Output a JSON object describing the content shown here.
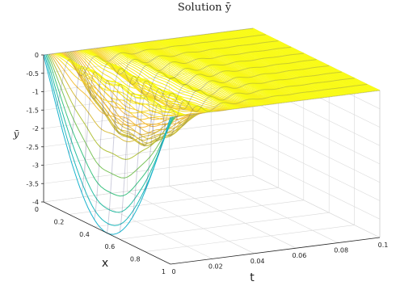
{
  "chart_data": {
    "type": "surface",
    "title": "Solution ȳ",
    "xlabel": "x",
    "tlabel": "t",
    "zlabel": "ȳ",
    "x_range": [
      0,
      1
    ],
    "t_range": [
      0,
      0.1
    ],
    "z_range": [
      -4,
      0
    ],
    "x_ticks": [
      "0",
      "0.2",
      "0.4",
      "0.6",
      "0.8",
      "1"
    ],
    "t_ticks": [
      "0",
      "0.02",
      "0.04",
      "0.06",
      "0.08",
      "0.1"
    ],
    "z_ticks": [
      "0",
      "-0.5",
      "-1",
      "-1.5",
      "-2",
      "-2.5",
      "-3",
      "-3.5",
      "-4"
    ],
    "grid": true,
    "colormap": "parula",
    "colors": [
      "#3e26a8",
      "#2f7ff4",
      "#17b1d3",
      "#2ec38c",
      "#a6c33a",
      "#f5b940",
      "#f9fb14"
    ],
    "surface_summary": {
      "t_samples": [
        0,
        0.01,
        0.02,
        0.03,
        0.04,
        0.05,
        0.06,
        0.07,
        0.08,
        0.09,
        0.1
      ],
      "min_value_at_t0": -4,
      "max_value": 0,
      "settles_to": 0,
      "settling_time": 0.045
    }
  }
}
